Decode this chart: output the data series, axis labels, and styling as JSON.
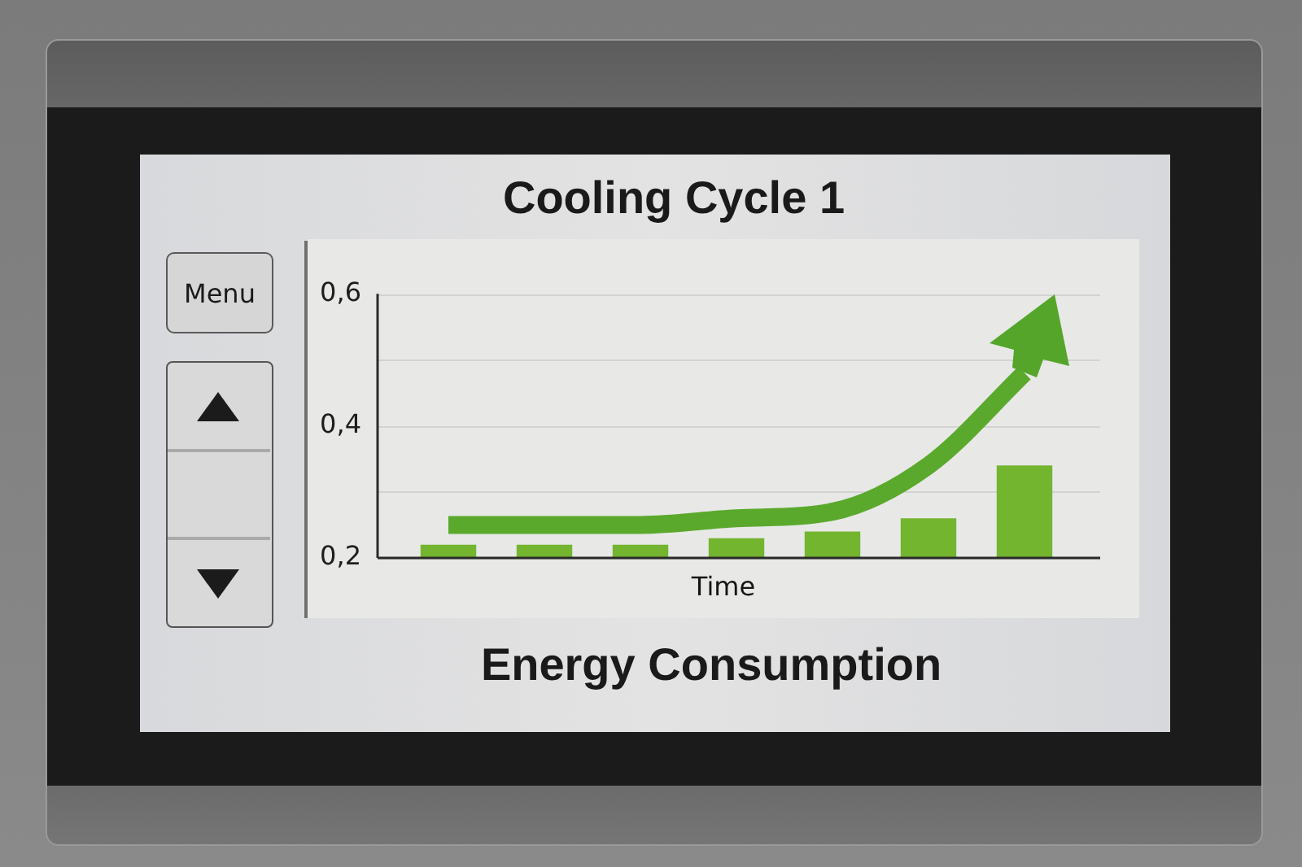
{
  "chart_data": {
    "type": "bar",
    "title": "Cooling Cycle 1",
    "xlabel": "Time",
    "annotations": [
      "Energy Consumption",
      "Menu"
    ],
    "categories": [
      null,
      null,
      null,
      null,
      null,
      null,
      null
    ],
    "series": [
      {
        "color": "#74b530",
        "values": [
          0.22,
          0.22,
          0.22,
          0.23,
          0.24,
          0.26,
          0.34
        ]
      },
      {
        "type": "line",
        "color": "#5aa92c",
        "values": [
          0.25,
          0.25,
          0.25,
          0.26,
          0.27,
          0.34,
          0.48
        ]
      }
    ],
    "ylim": [
      0.2,
      0.6
    ],
    "yticks": [
      {
        "value": 0.2,
        "label": "0,2"
      },
      {
        "value": 0.3,
        "label": null
      },
      {
        "value": 0.4,
        "label": "0,4"
      },
      {
        "value": 0.5,
        "label": null
      },
      {
        "value": 0.6,
        "label": "0,6"
      }
    ],
    "grid": "y"
  }
}
